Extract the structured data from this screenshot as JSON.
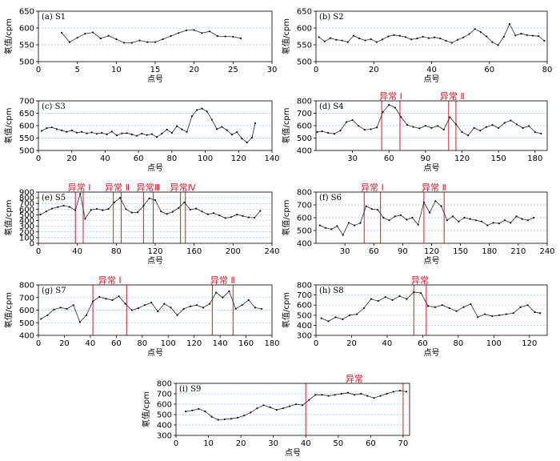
{
  "chart_data": [
    {
      "type": "line",
      "title": "(a) S1",
      "xlabel": "点号",
      "ylabel": "氡值/cpm",
      "xlim": [
        0,
        30
      ],
      "ylim": [
        500,
        650
      ],
      "xticks": [
        0,
        5,
        10,
        15,
        20,
        25,
        30
      ],
      "yticks": [
        500,
        550,
        600,
        650
      ],
      "x": [
        3,
        4,
        5,
        6,
        7,
        8,
        9,
        10,
        11,
        12,
        13,
        14,
        15,
        16,
        17,
        18,
        19,
        20,
        21,
        22,
        23,
        24,
        25,
        26
      ],
      "values": [
        586,
        558,
        571,
        583,
        587,
        569,
        577,
        567,
        556,
        556,
        563,
        558,
        558,
        567,
        576,
        585,
        593,
        594,
        585,
        590,
        576,
        575,
        574,
        569
      ],
      "anomalies": []
    },
    {
      "type": "line",
      "title": "(b) S2",
      "xlabel": "点号",
      "ylabel": "氡值/cpm",
      "xlim": [
        0,
        80
      ],
      "ylim": [
        500,
        650
      ],
      "xticks": [
        0,
        20,
        40,
        60,
        80
      ],
      "yticks": [
        500,
        550,
        600,
        650
      ],
      "x": [
        1,
        3,
        5,
        7,
        9,
        11,
        13,
        15,
        17,
        19,
        21,
        23,
        25,
        27,
        29,
        31,
        33,
        35,
        37,
        39,
        41,
        43,
        45,
        47,
        49,
        51,
        53,
        55,
        57,
        59,
        61,
        63,
        65,
        67,
        69,
        71,
        73,
        75,
        77,
        79
      ],
      "values": [
        573,
        560,
        570,
        565,
        563,
        558,
        577,
        569,
        563,
        567,
        558,
        566,
        575,
        579,
        577,
        573,
        566,
        569,
        574,
        570,
        572,
        569,
        562,
        556,
        565,
        572,
        582,
        597,
        588,
        575,
        558,
        549,
        574,
        612,
        578,
        583,
        579,
        577,
        576,
        562
      ],
      "anomalies": []
    },
    {
      "type": "line",
      "title": "(c) S3",
      "xlabel": "点号",
      "ylabel": "氡值/cpm",
      "xlim": [
        0,
        140
      ],
      "ylim": [
        500,
        700
      ],
      "xticks": [
        0,
        20,
        40,
        60,
        80,
        100,
        120,
        140
      ],
      "yticks": [
        500,
        550,
        600,
        650,
        700
      ],
      "x": [
        2,
        5,
        8,
        11,
        14,
        17,
        20,
        23,
        26,
        29,
        32,
        35,
        38,
        41,
        44,
        47,
        50,
        53,
        56,
        59,
        62,
        65,
        68,
        71,
        74,
        77,
        80,
        83,
        86,
        89,
        92,
        95,
        98,
        101,
        104,
        107,
        110,
        113,
        116,
        119,
        122,
        125,
        128,
        130
      ],
      "values": [
        579,
        590,
        593,
        586,
        581,
        575,
        581,
        572,
        575,
        569,
        573,
        567,
        571,
        565,
        576,
        561,
        569,
        570,
        565,
        559,
        568,
        562,
        566,
        554,
        568,
        584,
        571,
        598,
        585,
        575,
        638,
        663,
        669,
        657,
        624,
        586,
        595,
        582,
        564,
        574,
        548,
        532,
        552,
        610
      ],
      "anomalies": []
    },
    {
      "type": "line",
      "title": "(d) S4",
      "xlabel": "点号",
      "ylabel": "氡值/cpm",
      "xlim": [
        0,
        190
      ],
      "ylim": [
        400,
        800
      ],
      "xticks": [
        30,
        60,
        90,
        120,
        150,
        180
      ],
      "yticks": [
        400,
        500,
        600,
        700,
        800
      ],
      "x": [
        1,
        5,
        10,
        15,
        20,
        25,
        30,
        35,
        40,
        45,
        50,
        55,
        60,
        65,
        70,
        75,
        80,
        85,
        90,
        95,
        100,
        105,
        110,
        115,
        120,
        125,
        130,
        135,
        140,
        145,
        150,
        155,
        160,
        165,
        170,
        175,
        180,
        185
      ],
      "values": [
        549,
        555,
        542,
        534,
        560,
        629,
        645,
        598,
        567,
        571,
        585,
        711,
        768,
        745,
        668,
        606,
        590,
        578,
        599,
        582,
        598,
        568,
        668,
        612,
        548,
        522,
        582,
        560,
        589,
        606,
        581,
        623,
        642,
        610,
        581,
        597,
        549,
        536
      ],
      "anomalies": [
        {
          "label": "异常 Ⅰ",
          "x1": 54,
          "x2": 69
        },
        {
          "label": "异常 Ⅱ",
          "x1": 109,
          "x2": 115
        }
      ]
    },
    {
      "type": "line",
      "title": "(e) S5",
      "xlabel": "点号",
      "ylabel": "氡值/cpm",
      "xlim": [
        0,
        240
      ],
      "ylim": [
        0,
        900
      ],
      "xticks": [
        0,
        40,
        80,
        120,
        160,
        200,
        240
      ],
      "yticks": [
        0,
        100,
        200,
        300,
        400,
        500,
        600,
        700,
        800,
        900
      ],
      "x": [
        2,
        8,
        14,
        20,
        26,
        32,
        38,
        43,
        48,
        54,
        60,
        66,
        72,
        78,
        84,
        90,
        96,
        102,
        108,
        114,
        120,
        126,
        132,
        138,
        144,
        150,
        156,
        162,
        168,
        174,
        180,
        186,
        192,
        198,
        204,
        210,
        216,
        222,
        228
      ],
      "values": [
        505,
        560,
        610,
        638,
        662,
        640,
        580,
        870,
        430,
        585,
        605,
        582,
        603,
        720,
        800,
        600,
        540,
        545,
        660,
        790,
        760,
        560,
        515,
        555,
        620,
        720,
        590,
        610,
        560,
        510,
        530,
        490,
        445,
        460,
        505,
        480,
        455,
        450,
        570
      ],
      "anomalies": [
        {
          "label": "异常 Ⅰ",
          "x1": 38,
          "x2": 46
        },
        {
          "label": "异常 Ⅱ",
          "x1": 77,
          "x2": 85
        },
        {
          "label": "异常Ⅲ",
          "x1": 108,
          "x2": 118
        },
        {
          "label": "异常Ⅳ",
          "x1": 146,
          "x2": 151
        }
      ]
    },
    {
      "type": "line",
      "title": "(f) S6",
      "xlabel": "点号",
      "ylabel": "氡值/cpm",
      "xlim": [
        0,
        240
      ],
      "ylim": [
        400,
        800
      ],
      "xticks": [
        30,
        60,
        90,
        120,
        150,
        180,
        210,
        240
      ],
      "yticks": [
        400,
        500,
        600,
        700,
        800
      ],
      "x": [
        4,
        10,
        16,
        22,
        28,
        34,
        40,
        46,
        52,
        58,
        64,
        70,
        76,
        82,
        88,
        94,
        100,
        106,
        112,
        118,
        124,
        130,
        136,
        142,
        148,
        154,
        160,
        166,
        172,
        178,
        184,
        190,
        196,
        202,
        208,
        214,
        220,
        226
      ],
      "values": [
        540,
        520,
        510,
        535,
        465,
        560,
        540,
        558,
        690,
        668,
        662,
        600,
        580,
        610,
        620,
        585,
        600,
        545,
        720,
        640,
        730,
        690,
        580,
        610,
        570,
        600,
        590,
        580,
        570,
        540,
        560,
        555,
        580,
        560,
        610,
        590,
        580,
        600
      ],
      "anomalies": [
        {
          "label": "异常 Ⅰ",
          "x1": 50,
          "x2": 67
        },
        {
          "label": "异常 Ⅱ",
          "x1": 112,
          "x2": 133
        }
      ]
    },
    {
      "type": "line",
      "title": "(g) S7",
      "xlabel": "点号",
      "ylabel": "氡值/cpm",
      "xlim": [
        0,
        180
      ],
      "ylim": [
        400,
        800
      ],
      "xticks": [
        0,
        20,
        40,
        60,
        80,
        100,
        120,
        140,
        160,
        180
      ],
      "yticks": [
        400,
        500,
        600,
        700,
        800
      ],
      "x": [
        2,
        7,
        12,
        17,
        22,
        27,
        32,
        37,
        42,
        47,
        52,
        57,
        62,
        67,
        72,
        77,
        82,
        87,
        92,
        97,
        102,
        107,
        112,
        117,
        122,
        127,
        132,
        137,
        142,
        147,
        152,
        157,
        162,
        167,
        172
      ],
      "values": [
        530,
        560,
        605,
        620,
        610,
        640,
        505,
        560,
        670,
        705,
        690,
        680,
        710,
        650,
        600,
        615,
        640,
        660,
        590,
        650,
        620,
        560,
        610,
        630,
        640,
        620,
        650,
        740,
        700,
        750,
        610,
        640,
        680,
        620,
        610
      ],
      "anomalies": [
        {
          "label": "异常 Ⅰ",
          "x1": 42,
          "x2": 68
        },
        {
          "label": "异常 Ⅱ",
          "x1": 134,
          "x2": 150
        }
      ]
    },
    {
      "type": "line",
      "title": "(h) S8",
      "xlabel": "点号",
      "ylabel": "氡值/cpm",
      "xlim": [
        0,
        130
      ],
      "ylim": [
        300,
        800
      ],
      "xticks": [
        0,
        20,
        40,
        60,
        80,
        100,
        120
      ],
      "yticks": [
        300,
        400,
        500,
        600,
        700,
        800
      ],
      "x": [
        3,
        7,
        11,
        15,
        19,
        23,
        27,
        31,
        35,
        39,
        43,
        47,
        51,
        55,
        59,
        63,
        67,
        71,
        75,
        79,
        83,
        87,
        91,
        95,
        99,
        103,
        107,
        111,
        115,
        119,
        123,
        126
      ],
      "values": [
        470,
        440,
        480,
        460,
        500,
        510,
        570,
        660,
        640,
        680,
        650,
        690,
        660,
        730,
        720,
        590,
        580,
        600,
        570,
        540,
        580,
        610,
        480,
        510,
        490,
        500,
        510,
        520,
        580,
        600,
        530,
        520
      ],
      "anomalies": [
        {
          "label": "异常",
          "x1": 55,
          "x2": 62
        }
      ]
    },
    {
      "type": "line",
      "title": "(i) S9",
      "xlabel": "点号",
      "ylabel": "氡值/cpm",
      "xlim": [
        0,
        72
      ],
      "ylim": [
        300,
        800
      ],
      "xticks": [
        0,
        10,
        20,
        30,
        40,
        50,
        60,
        70
      ],
      "yticks": [
        300,
        400,
        500,
        600,
        700,
        800
      ],
      "x": [
        3,
        5,
        7,
        9,
        11,
        13,
        15,
        17,
        19,
        21,
        23,
        25,
        27,
        29,
        31,
        33,
        35,
        37,
        39,
        41,
        43,
        45,
        47,
        49,
        51,
        53,
        55,
        57,
        59,
        61,
        63,
        65,
        67,
        69,
        71
      ],
      "values": [
        530,
        540,
        555,
        530,
        480,
        450,
        455,
        460,
        470,
        490,
        520,
        560,
        590,
        570,
        545,
        560,
        580,
        600,
        590,
        640,
        690,
        690,
        680,
        690,
        700,
        710,
        690,
        700,
        680,
        660,
        680,
        700,
        720,
        730,
        720
      ],
      "anomalies": [
        {
          "label": "异常",
          "x1": 40,
          "x2": 70
        }
      ]
    }
  ]
}
